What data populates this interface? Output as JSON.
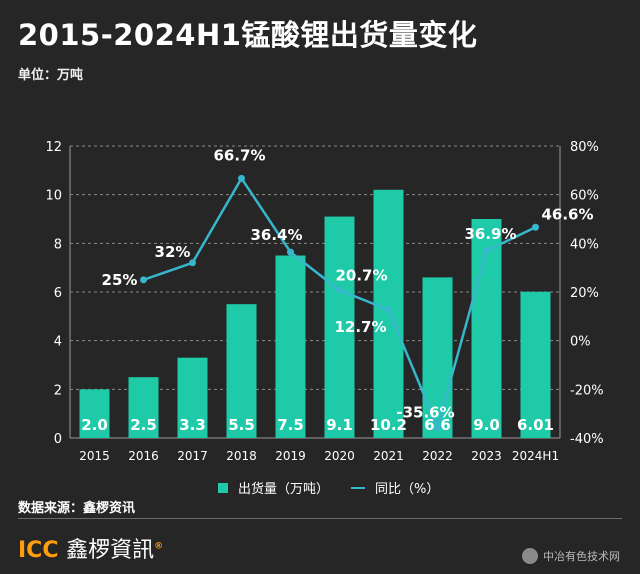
{
  "title": "2015-2024H1锰酸锂出货量变化",
  "unit_label": "单位：万吨",
  "source_label": "数据来源：鑫椤资讯",
  "logo": {
    "text": "ICC",
    "cn_text": "鑫椤資訊",
    "mark": "®"
  },
  "watermark_text": "中冶有色技术网",
  "legend": {
    "bar_label": "出货量（万吨）",
    "line_label": "同比（%）"
  },
  "colors": {
    "bar": "#1fcaa8",
    "line": "#37b6cc",
    "background": "#262626"
  },
  "chart_data": {
    "type": "bar",
    "categories": [
      "2015",
      "2016",
      "2017",
      "2018",
      "2019",
      "2020",
      "2021",
      "2022",
      "2023",
      "2024H1"
    ],
    "series": [
      {
        "name": "出货量（万吨）",
        "type": "bar",
        "axis": "left",
        "values": [
          2.0,
          2.5,
          3.3,
          5.5,
          7.5,
          9.1,
          10.2,
          6.6,
          9.0,
          6.01
        ],
        "labels": [
          "2.0",
          "2.5",
          "3.3",
          "5.5",
          "7.5",
          "9.1",
          "10.2",
          "6.6",
          "9.0",
          "6.01"
        ]
      },
      {
        "name": "同比（%）",
        "type": "line",
        "axis": "right",
        "values": [
          null,
          25,
          32,
          66.7,
          36.4,
          20.7,
          12.7,
          -35.6,
          36.9,
          46.6
        ],
        "labels": [
          "",
          "25%",
          "32%",
          "66.7%",
          "36.4%",
          "20.7%",
          "12.7%",
          "-35.6%",
          "36.9%",
          "46.6%"
        ]
      }
    ],
    "y_left": {
      "ylim": [
        0,
        12
      ],
      "ticks": [
        "0",
        "2",
        "4",
        "6",
        "8",
        "10",
        "12"
      ]
    },
    "y_right": {
      "ylim": [
        -40,
        80
      ],
      "ticks": [
        "-40%",
        "-20%",
        "0%",
        "20%",
        "40%",
        "60%",
        "80%"
      ]
    },
    "grid": true,
    "legend_position": "bottom"
  }
}
